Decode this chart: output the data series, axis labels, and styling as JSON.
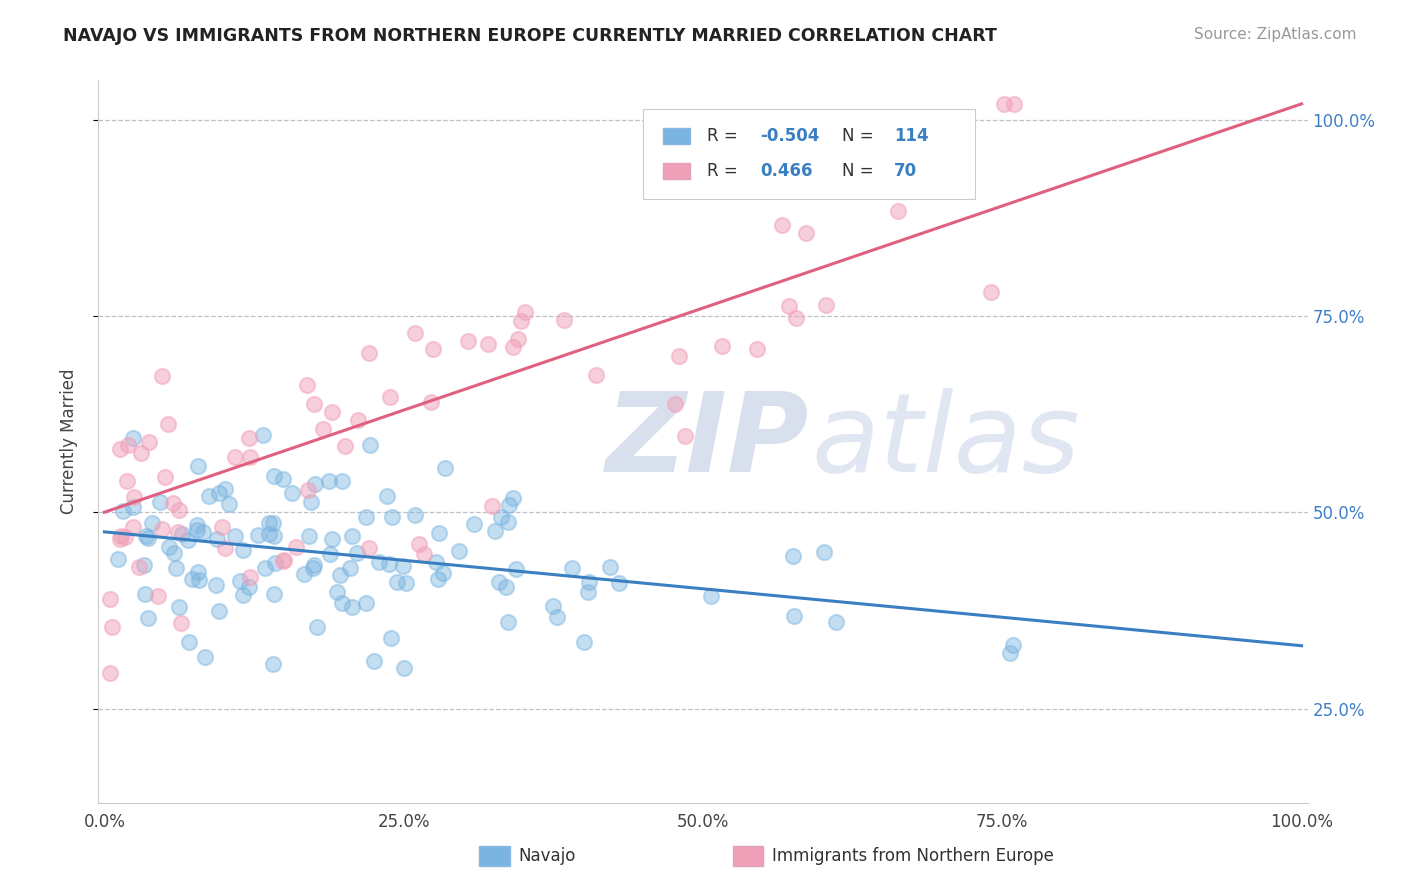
{
  "title": "NAVAJO VS IMMIGRANTS FROM NORTHERN EUROPE CURRENTLY MARRIED CORRELATION CHART",
  "source": "Source: ZipAtlas.com",
  "ylabel": "Currently Married",
  "xmin": 0.0,
  "xmax": 1.0,
  "ymin": 0.13,
  "ymax": 1.05,
  "navajo_R": -0.504,
  "navajo_N": 114,
  "immig_R": 0.466,
  "immig_N": 70,
  "navajo_color": "#7ab4e0",
  "immig_color": "#f0a0b8",
  "navajo_line_color": "#3a7fc1",
  "immig_line_color": "#e06080",
  "ytick_labels": [
    "25.0%",
    "50.0%",
    "75.0%",
    "100.0%"
  ],
  "ytick_values": [
    0.25,
    0.5,
    0.75,
    1.0
  ],
  "xtick_labels": [
    "0.0%",
    "25.0%",
    "50.0%",
    "75.0%",
    "100.0%"
  ],
  "xtick_values": [
    0.0,
    0.25,
    0.5,
    0.75,
    1.0
  ],
  "navajo_intercept": 0.475,
  "navajo_slope": -0.145,
  "immig_intercept": 0.5,
  "immig_slope": 0.52
}
